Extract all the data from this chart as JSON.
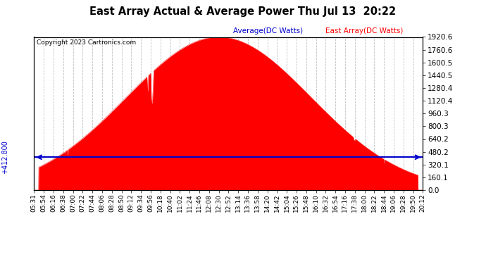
{
  "title": "East Array Actual & Average Power Thu Jul 13  20:22",
  "copyright": "Copyright 2023 Cartronics.com",
  "legend_avg": "Average(DC Watts)",
  "legend_east": "East Array(DC Watts)",
  "avg_value": 412.8,
  "ymax": 1920.6,
  "ymin": 0.0,
  "yticks": [
    0.0,
    160.1,
    320.1,
    480.2,
    640.2,
    800.3,
    960.3,
    1120.4,
    1280.4,
    1440.5,
    1600.5,
    1760.6,
    1920.6
  ],
  "bg_color": "#ffffff",
  "grid_color": "#bbbbbb",
  "area_color": "#ff0000",
  "avg_line_color": "#0000cc",
  "title_color": "#000000",
  "copyright_color": "#000000",
  "legend_avg_color": "#0000cc",
  "legend_east_color": "#ff0000",
  "left_label_color": "#0000cc",
  "right_label_color": "#0000cc",
  "xtick_labels": [
    "05:31",
    "05:54",
    "06:16",
    "06:38",
    "07:00",
    "07:22",
    "07:44",
    "08:06",
    "08:28",
    "08:50",
    "09:12",
    "09:34",
    "09:56",
    "10:18",
    "10:40",
    "11:02",
    "11:24",
    "11:46",
    "12:08",
    "12:30",
    "12:52",
    "13:14",
    "13:36",
    "13:58",
    "14:20",
    "14:42",
    "15:04",
    "15:26",
    "15:48",
    "16:10",
    "16:32",
    "16:54",
    "17:16",
    "17:38",
    "18:00",
    "18:22",
    "18:44",
    "19:06",
    "19:28",
    "19:50",
    "20:12"
  ]
}
